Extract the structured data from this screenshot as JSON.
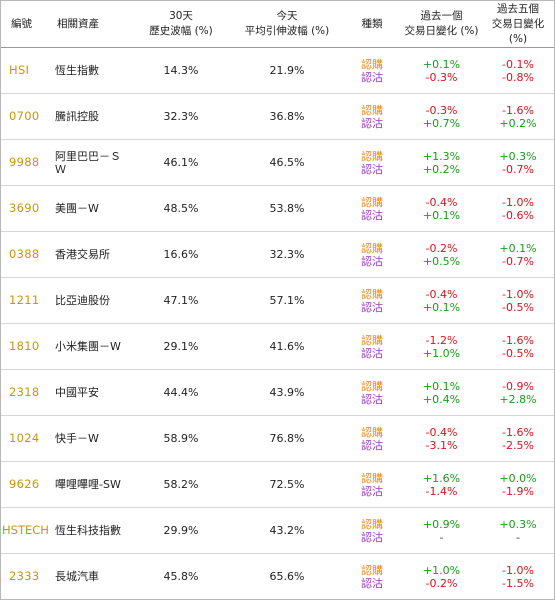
{
  "headers": {
    "code": "編號",
    "asset": "相關資產",
    "hv_line1": "30天",
    "hv_line2": "歷史波幅 (%)",
    "iv_line1": "今天",
    "iv_line2": "平均引伸波幅 (%)",
    "type": "種類",
    "d1_line1": "過去一個",
    "d1_line2": "交易日變化 (%)",
    "d5_line1": "過去五個",
    "d5_line2": "交易日變化 (%)"
  },
  "type_labels": {
    "call": "認購",
    "put": "認沽"
  },
  "colors": {
    "code": "#c8960a",
    "call": "#e8891d",
    "put": "#9b3bbf",
    "positive": "#1a9c1a",
    "negative": "#d8141c"
  },
  "rows": [
    {
      "code": "HSI",
      "name": "恆生指數",
      "hv": "14.3%",
      "iv": "21.9%",
      "d1_call": "+0.1%",
      "d1_put": "-0.3%",
      "d5_call": "-0.1%",
      "d5_put": "-0.8%"
    },
    {
      "code": "0700",
      "name": "騰訊控股",
      "hv": "32.3%",
      "iv": "36.8%",
      "d1_call": "-0.3%",
      "d1_put": "+0.7%",
      "d5_call": "-1.6%",
      "d5_put": "+0.2%"
    },
    {
      "code": "9988",
      "name": "阿里巴巴－ＳＷ",
      "hv": "46.1%",
      "iv": "46.5%",
      "d1_call": "+1.3%",
      "d1_put": "+0.2%",
      "d5_call": "+0.3%",
      "d5_put": "-0.7%"
    },
    {
      "code": "3690",
      "name": "美團－W",
      "hv": "48.5%",
      "iv": "53.8%",
      "d1_call": "-0.4%",
      "d1_put": "+0.1%",
      "d5_call": "-1.0%",
      "d5_put": "-0.6%"
    },
    {
      "code": "0388",
      "name": "香港交易所",
      "hv": "16.6%",
      "iv": "32.3%",
      "d1_call": "-0.2%",
      "d1_put": "+0.5%",
      "d5_call": "+0.1%",
      "d5_put": "-0.7%"
    },
    {
      "code": "1211",
      "name": "比亞迪股份",
      "hv": "47.1%",
      "iv": "57.1%",
      "d1_call": "-0.4%",
      "d1_put": "+0.1%",
      "d5_call": "-1.0%",
      "d5_put": "-0.5%"
    },
    {
      "code": "1810",
      "name": "小米集團－W",
      "hv": "29.1%",
      "iv": "41.6%",
      "d1_call": "-1.2%",
      "d1_put": "+1.0%",
      "d5_call": "-1.6%",
      "d5_put": "-0.5%"
    },
    {
      "code": "2318",
      "name": "中國平安",
      "hv": "44.4%",
      "iv": "43.9%",
      "d1_call": "+0.1%",
      "d1_put": "+0.4%",
      "d5_call": "-0.9%",
      "d5_put": "+2.8%"
    },
    {
      "code": "1024",
      "name": "快手－W",
      "hv": "58.9%",
      "iv": "76.8%",
      "d1_call": "-0.4%",
      "d1_put": "-3.1%",
      "d5_call": "-1.6%",
      "d5_put": "-2.5%"
    },
    {
      "code": "9626",
      "name": "嗶哩嗶哩-SW",
      "hv": "58.2%",
      "iv": "72.5%",
      "d1_call": "+1.6%",
      "d1_put": "-1.4%",
      "d5_call": "+0.0%",
      "d5_put": "-1.9%"
    },
    {
      "code": "HSTECH",
      "name": "恆生科技指數",
      "hv": "29.9%",
      "iv": "43.2%",
      "d1_call": "+0.9%",
      "d1_put": "-",
      "d5_call": "+0.3%",
      "d5_put": "-"
    },
    {
      "code": "2333",
      "name": "長城汽車",
      "hv": "45.8%",
      "iv": "65.6%",
      "d1_call": "+1.0%",
      "d1_put": "-0.2%",
      "d5_call": "-1.0%",
      "d5_put": "-1.5%"
    }
  ]
}
